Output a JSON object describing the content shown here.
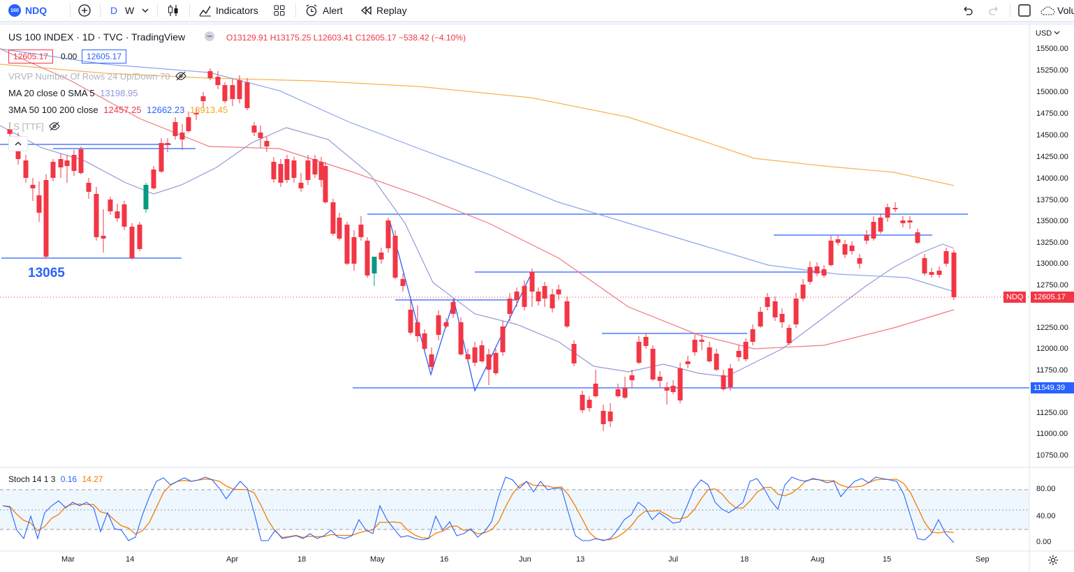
{
  "toolbar": {
    "symbol": "NDQ",
    "logo_text": "100",
    "interval_d": "D",
    "interval_w": "W",
    "indicators_label": "Indicators",
    "alert_label": "Alert",
    "replay_label": "Replay",
    "volume_label": "Volu"
  },
  "header": {
    "title": "US 100 INDEX · 1D · TVC · TradingView",
    "ohlc": "O13129.91 H13175.25 L12603.41 C12605.17 −538.42 (−4.10%)",
    "bid": "12605.17",
    "spread": "0.00",
    "ask": "12605.17"
  },
  "indicators": {
    "vrvp": "VRVP Number Of Rows 24 Up/Down 70",
    "ma_label": "MA 20 close 0 SMA 5",
    "ma_value": "13198.95",
    "sma3_label": "3MA 50 100 200 close",
    "sma50": "12457.25",
    "sma100": "12662.23",
    "sma200": "13913.45",
    "ls": "LS [TTF]"
  },
  "annotation": {
    "label": "13065"
  },
  "price_axis": {
    "currency": "USD",
    "labels": [
      "15500.00",
      "15250.00",
      "15000.00",
      "14750.00",
      "14500.00",
      "14250.00",
      "14000.00",
      "13750.00",
      "13500.00",
      "13250.00",
      "13000.00",
      "12750.00",
      "12250.00",
      "12000.00",
      "11750.00",
      "11250.00",
      "11000.00",
      "10750.00"
    ],
    "ndq_tag": "NDQ",
    "last_price": "12605.17",
    "line_price": "11549.39"
  },
  "stoch": {
    "label": "Stoch 14 1 3",
    "k": "0.16",
    "d": "14.27",
    "axis": [
      "80.00",
      "40.00",
      "0.00"
    ]
  },
  "time_axis": [
    "Mar",
    "14",
    "Apr",
    "18",
    "May",
    "16",
    "Jun",
    "13",
    "Jul",
    "18",
    "Aug",
    "15",
    "Sep"
  ],
  "colors": {
    "up": "#089981",
    "down": "#f23645",
    "blue_line": "#2962ff",
    "ma20": "#9598d8",
    "sma50": "#f0787e",
    "sma100": "#8ca4ec",
    "sma200": "#f5b24e"
  }
}
